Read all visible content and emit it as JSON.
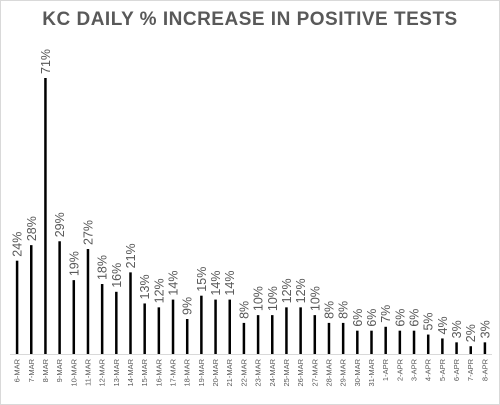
{
  "chart_data": {
    "type": "bar",
    "title": "KC DAILY % INCREASE IN POSITIVE TESTS",
    "xlabel": "",
    "ylabel": "",
    "ylim": [
      0,
      71
    ],
    "grid": false,
    "legend": "none",
    "bar_color": "#000000",
    "label_color": "#595959",
    "categories": [
      "6-MAR",
      "7-MAR",
      "8-MAR",
      "9-MAR",
      "10-MAR",
      "11-MAR",
      "12-MAR",
      "13-MAR",
      "14-MAR",
      "15-MAR",
      "16-MAR",
      "17-MAR",
      "18-MAR",
      "19-MAR",
      "20-MAR",
      "21-MAR",
      "22-MAR",
      "23-MAR",
      "24-MAR",
      "25-MAR",
      "26-MAR",
      "27-MAR",
      "28-MAR",
      "29-MAR",
      "30-MAR",
      "31-MAR",
      "1-APR",
      "2-APR",
      "3-APR",
      "4-APR",
      "5-APR",
      "6-APR",
      "7-APR",
      "8-APR"
    ],
    "values": [
      24,
      28,
      71,
      29,
      19,
      27,
      18,
      16,
      21,
      13,
      12,
      14,
      9,
      15,
      14,
      14,
      8,
      10,
      10,
      12,
      12,
      10,
      8,
      8,
      6,
      6,
      7,
      6,
      6,
      5,
      4,
      3,
      2,
      3
    ],
    "data_labels": [
      "24%",
      "28%",
      "71%",
      "29%",
      "19%",
      "27%",
      "18%",
      "16%",
      "21%",
      "13%",
      "12%",
      "14%",
      "9%",
      "15%",
      "14%",
      "14%",
      "8%",
      "10%",
      "10%",
      "12%",
      "12%",
      "10%",
      "8%",
      "8%",
      "6%",
      "6%",
      "7%",
      "6%",
      "6%",
      "5%",
      "4%",
      "3%",
      "2%",
      "3%"
    ]
  }
}
